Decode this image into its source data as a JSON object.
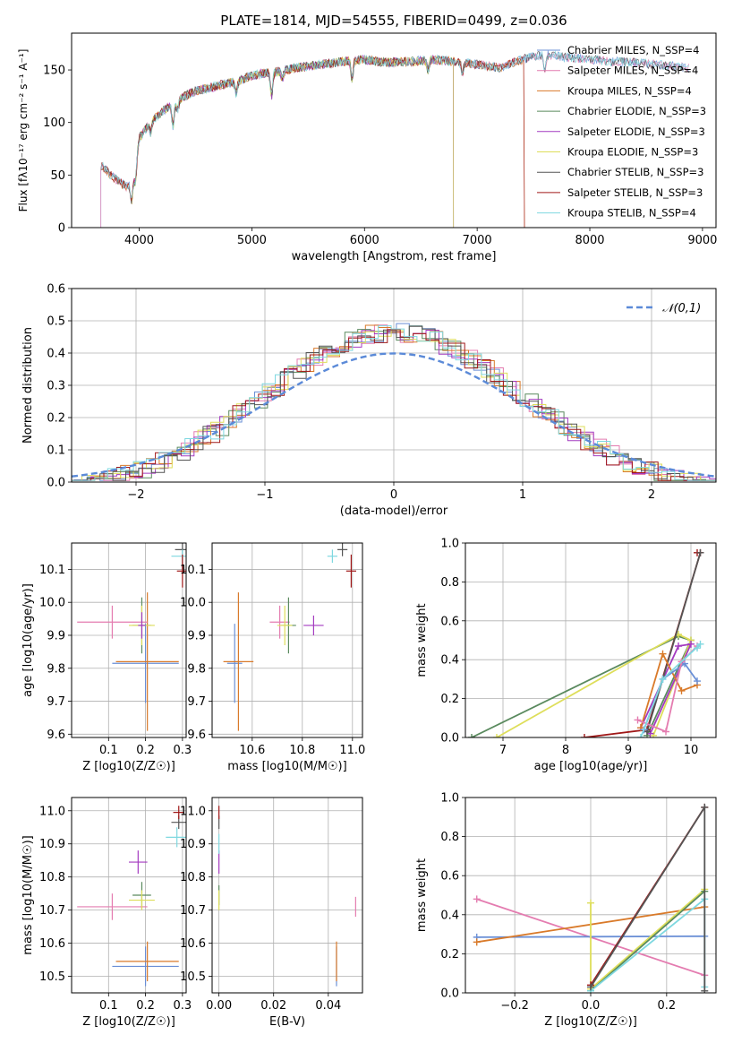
{
  "colors": {
    "chabrier_miles": "#6a8fd6",
    "salpeter_miles": "#e47cb0",
    "kroupa_miles": "#d97a2a",
    "chabrier_elodie": "#5a8a5e",
    "salpeter_elodie": "#a43bc0",
    "kroupa_elodie": "#dede5a",
    "chabrier_stelib": "#555555",
    "salpeter_stelib": "#a01818",
    "kroupa_stelib": "#7fd8e0",
    "normal": "#5b8ad8"
  },
  "chart_data": [
    {
      "id": "spectrum",
      "type": "line",
      "title": "PLATE=1814, MJD=54555, FIBERID=0499, z=0.036",
      "xlabel": "wavelength [Angstrom, rest frame]",
      "ylabel": "Flux [fλ10⁻¹⁷ erg cm⁻² s⁻¹ A⁻¹]",
      "xlim": [
        3400,
        9120
      ],
      "ylim": [
        0,
        185
      ],
      "xticks": [
        "4000",
        "5000",
        "6000",
        "7000",
        "8000",
        "9000"
      ],
      "yticks": [
        "0",
        "50",
        "100",
        "150"
      ],
      "legend_position": "top-right",
      "legend": [
        "Chabrier MILES, N_SSP=4",
        "Salpeter MILES, N_SSP=4",
        "Kroupa MILES, N_SSP=4",
        "Chabrier ELODIE, N_SSP=3",
        "Salpeter ELODIE, N_SSP=3",
        "Kroupa ELODIE, N_SSP=3",
        "Chabrier STELIB, N_SSP=3",
        "Salpeter STELIB, N_SSP=3",
        "Kroupa STELIB, N_SSP=4"
      ],
      "continuum": [
        [
          3660,
          60
        ],
        [
          3700,
          55
        ],
        [
          3800,
          45
        ],
        [
          3900,
          38
        ],
        [
          3950,
          50
        ],
        [
          4000,
          85
        ],
        [
          4100,
          100
        ],
        [
          4200,
          110
        ],
        [
          4300,
          118
        ],
        [
          4400,
          125
        ],
        [
          4500,
          130
        ],
        [
          4700,
          135
        ],
        [
          4900,
          140
        ],
        [
          5000,
          145
        ],
        [
          5200,
          148
        ],
        [
          5400,
          152
        ],
        [
          5600,
          155
        ],
        [
          5800,
          158
        ],
        [
          6000,
          160
        ],
        [
          6200,
          157
        ],
        [
          6400,
          158
        ],
        [
          6600,
          160
        ],
        [
          6800,
          158
        ],
        [
          7000,
          155
        ],
        [
          7200,
          152
        ],
        [
          7400,
          160
        ],
        [
          7600,
          165
        ],
        [
          7800,
          162
        ],
        [
          8000,
          160
        ],
        [
          8200,
          158
        ],
        [
          8400,
          157
        ],
        [
          8600,
          155
        ],
        [
          8800,
          153
        ],
        [
          8880,
          152
        ]
      ],
      "dips": [
        [
          3933,
          20
        ],
        [
          3968,
          18
        ],
        [
          4102,
          10
        ],
        [
          4300,
          22
        ],
        [
          4340,
          10
        ],
        [
          4861,
          12
        ],
        [
          5175,
          22
        ],
        [
          5270,
          8
        ],
        [
          5890,
          18
        ],
        [
          6563,
          10
        ],
        [
          6870,
          10
        ],
        [
          7600,
          15
        ]
      ],
      "grid": false
    },
    {
      "id": "residuals",
      "type": "histogram",
      "xlabel": "(data-model)/error",
      "ylabel": "Normed distribution",
      "xlim": [
        -2.5,
        2.5
      ],
      "ylim": [
        0,
        0.6
      ],
      "xticks": [
        "−2",
        "−1",
        "0",
        "1",
        "2"
      ],
      "yticks": [
        "0.0",
        "0.1",
        "0.2",
        "0.3",
        "0.4",
        "0.5",
        "0.6"
      ],
      "bin_width": 0.1,
      "legend": [
        "𝒩(0,1)"
      ],
      "legend_position": "top-right",
      "grid": true
    },
    {
      "id": "z-age",
      "type": "scatter",
      "xlabel": "Z [log10(Z/Z☉)]",
      "ylabel": "age [log10(age/yr)]",
      "xlim": [
        0.0,
        0.31
      ],
      "ylim": [
        9.59,
        10.18
      ],
      "xticks": [
        "0.1",
        "0.2",
        "0.3"
      ],
      "yticks": [
        "9.6",
        "9.7",
        "9.8",
        "9.9",
        "10.0",
        "10.1"
      ],
      "grid": true,
      "points": [
        {
          "model": "chabrier_miles",
          "x": 0.2,
          "y": 9.815,
          "xerr": 0.09,
          "yerr": 0.12
        },
        {
          "model": "kroupa_miles",
          "x": 0.205,
          "y": 9.82,
          "xerr": 0.085,
          "yerr": 0.21
        },
        {
          "model": "salpeter_miles",
          "x": 0.11,
          "y": 9.94,
          "xerr": 0.095,
          "yerr": 0.05
        },
        {
          "model": "chabrier_elodie",
          "x": 0.19,
          "y": 9.93,
          "xerr": 0.025,
          "yerr": 0.085
        },
        {
          "model": "kroupa_elodie",
          "x": 0.19,
          "y": 9.93,
          "xerr": 0.035,
          "yerr": 0.06
        },
        {
          "model": "salpeter_elodie",
          "x": 0.19,
          "y": 9.93,
          "xerr": 0.01,
          "yerr": 0.04
        },
        {
          "model": "chabrier_stelib",
          "x": 0.3,
          "y": 10.16,
          "xerr": 0.02,
          "yerr": 0.06
        },
        {
          "model": "kroupa_stelib",
          "x": 0.3,
          "y": 10.14,
          "xerr": 0.03,
          "yerr": 0.02
        },
        {
          "model": "salpeter_stelib",
          "x": 0.3,
          "y": 10.095,
          "xerr": 0.015,
          "yerr": 0.05
        }
      ]
    },
    {
      "id": "mass-age",
      "type": "scatter",
      "xlabel": "mass [log10(M/M☉)]",
      "ylabel": "",
      "xlim": [
        10.44,
        11.04
      ],
      "ylim": [
        9.59,
        10.18
      ],
      "xticks": [
        "10.6",
        "10.8",
        "11.0"
      ],
      "yticks": [
        "9.6",
        "9.7",
        "9.8",
        "9.9",
        "10.0",
        "10.1"
      ],
      "grid": true,
      "points": [
        {
          "model": "chabrier_miles",
          "x": 10.53,
          "y": 9.815,
          "xerr": 0.03,
          "yerr": 0.12
        },
        {
          "model": "kroupa_miles",
          "x": 10.545,
          "y": 9.82,
          "xerr": 0.06,
          "yerr": 0.21
        },
        {
          "model": "salpeter_miles",
          "x": 10.71,
          "y": 9.94,
          "xerr": 0.04,
          "yerr": 0.05
        },
        {
          "model": "chabrier_elodie",
          "x": 10.745,
          "y": 9.93,
          "xerr": 0.03,
          "yerr": 0.085
        },
        {
          "model": "kroupa_elodie",
          "x": 10.73,
          "y": 9.93,
          "xerr": 0.03,
          "yerr": 0.06
        },
        {
          "model": "salpeter_elodie",
          "x": 10.845,
          "y": 9.93,
          "xerr": 0.04,
          "yerr": 0.03
        },
        {
          "model": "chabrier_stelib",
          "x": 10.96,
          "y": 10.16,
          "xerr": 0.02,
          "yerr": 0.02
        },
        {
          "model": "kroupa_stelib",
          "x": 10.92,
          "y": 10.14,
          "xerr": 0.02,
          "yerr": 0.02
        },
        {
          "model": "salpeter_stelib",
          "x": 10.995,
          "y": 10.095,
          "xerr": 0.02,
          "yerr": 0.05
        }
      ]
    },
    {
      "id": "age-weight",
      "type": "line",
      "xlabel": "age [log10(age/yr)]",
      "ylabel": "mass weight",
      "xlim": [
        6.4,
        10.4
      ],
      "ylim": [
        0,
        1.0
      ],
      "xticks": [
        "7",
        "8",
        "9",
        "10"
      ],
      "yticks": [
        "0.0",
        "0.2",
        "0.4",
        "0.6",
        "0.8",
        "1.0"
      ],
      "grid": true,
      "series": [
        {
          "model": "chabrier_elodie",
          "points": [
            [
              6.5,
              0.0
            ],
            [
              9.8,
              0.52
            ],
            [
              10.0,
              0.5
            ],
            [
              9.3,
              0.01
            ]
          ]
        },
        {
          "model": "kroupa_elodie",
          "points": [
            [
              6.9,
              0.0
            ],
            [
              9.8,
              0.53
            ],
            [
              10.0,
              0.5
            ],
            [
              9.4,
              0.01
            ]
          ]
        },
        {
          "model": "salpeter_elodie",
          "points": [
            [
              9.2,
              0.05
            ],
            [
              9.8,
              0.47
            ],
            [
              10.0,
              0.48
            ],
            [
              9.35,
              0.02
            ]
          ]
        },
        {
          "model": "salpeter_stelib",
          "points": [
            [
              8.3,
              0.0
            ],
            [
              9.3,
              0.04
            ],
            [
              10.15,
              0.95
            ],
            [
              10.1,
              0.95
            ]
          ]
        },
        {
          "model": "chabrier_stelib",
          "points": [
            [
              9.3,
              0.03
            ],
            [
              10.15,
              0.95
            ]
          ]
        },
        {
          "model": "kroupa_miles",
          "points": [
            [
              9.2,
              0.05
            ],
            [
              9.55,
              0.43
            ],
            [
              9.85,
              0.24
            ],
            [
              10.1,
              0.27
            ]
          ]
        },
        {
          "model": "chabrier_miles",
          "points": [
            [
              9.25,
              0.04
            ],
            [
              9.55,
              0.3
            ],
            [
              9.9,
              0.38
            ],
            [
              10.1,
              0.29
            ]
          ]
        },
        {
          "model": "salpeter_miles",
          "points": [
            [
              9.15,
              0.09
            ],
            [
              9.6,
              0.03
            ],
            [
              9.85,
              0.39
            ],
            [
              10.1,
              0.47
            ]
          ]
        },
        {
          "model": "kroupa_stelib",
          "points": [
            [
              9.2,
              0.0
            ],
            [
              9.55,
              0.3
            ],
            [
              10.15,
              0.48
            ],
            [
              10.1,
              0.46
            ]
          ]
        }
      ]
    },
    {
      "id": "z-mass",
      "type": "scatter",
      "xlabel": "Z [log10(Z/Z☉)]",
      "ylabel": "mass [log10(M/M☉)]",
      "xlim": [
        0.0,
        0.31
      ],
      "ylim": [
        10.45,
        11.04
      ],
      "xticks": [
        "0.1",
        "0.2",
        "0.3"
      ],
      "yticks": [
        "10.5",
        "10.6",
        "10.7",
        "10.8",
        "10.9",
        "11.0"
      ],
      "grid": true,
      "points": [
        {
          "model": "chabrier_miles",
          "x": 0.2,
          "y": 10.53,
          "xerr": 0.09,
          "yerr": 0.06
        },
        {
          "model": "kroupa_miles",
          "x": 0.205,
          "y": 10.545,
          "xerr": 0.085,
          "yerr": 0.06
        },
        {
          "model": "salpeter_miles",
          "x": 0.11,
          "y": 10.71,
          "xerr": 0.095,
          "yerr": 0.04
        },
        {
          "model": "chabrier_elodie",
          "x": 0.19,
          "y": 10.745,
          "xerr": 0.025,
          "yerr": 0.04
        },
        {
          "model": "kroupa_elodie",
          "x": 0.19,
          "y": 10.73,
          "xerr": 0.035,
          "yerr": 0.03
        },
        {
          "model": "salpeter_elodie",
          "x": 0.18,
          "y": 10.845,
          "xerr": 0.025,
          "yerr": 0.035
        },
        {
          "model": "chabrier_stelib",
          "x": 0.29,
          "y": 10.965,
          "xerr": 0.02,
          "yerr": 0.02
        },
        {
          "model": "kroupa_stelib",
          "x": 0.285,
          "y": 10.92,
          "xerr": 0.03,
          "yerr": 0.03
        },
        {
          "model": "salpeter_stelib",
          "x": 0.29,
          "y": 10.995,
          "xerr": 0.015,
          "yerr": 0.02
        }
      ]
    },
    {
      "id": "ebv-mass",
      "type": "scatter",
      "xlabel": "E(B-V)",
      "ylabel": "",
      "xlim": [
        -0.0025,
        0.0525
      ],
      "ylim": [
        10.45,
        11.04
      ],
      "xticks": [
        "0.00",
        "0.02",
        "0.04"
      ],
      "yticks": [
        "10.5",
        "10.6",
        "10.7",
        "10.8",
        "10.9",
        "11.0"
      ],
      "grid": true,
      "points": [
        {
          "model": "chabrier_miles",
          "x": 0.043,
          "y": 10.53,
          "xerr": 0,
          "yerr": 0.06
        },
        {
          "model": "kroupa_miles",
          "x": 0.043,
          "y": 10.545,
          "xerr": 0,
          "yerr": 0.06
        },
        {
          "model": "salpeter_miles",
          "x": 0.05,
          "y": 10.71,
          "xerr": 0,
          "yerr": 0.03
        },
        {
          "model": "chabrier_elodie",
          "x": 0.0,
          "y": 10.745,
          "xerr": 0,
          "yerr": 0.03
        },
        {
          "model": "kroupa_elodie",
          "x": 0.0,
          "y": 10.73,
          "xerr": 0,
          "yerr": 0.03
        },
        {
          "model": "salpeter_elodie",
          "x": 0.0,
          "y": 10.845,
          "xerr": 0,
          "yerr": 0.035
        },
        {
          "model": "chabrier_stelib",
          "x": 0.0,
          "y": 10.965,
          "xerr": 0,
          "yerr": 0.02
        },
        {
          "model": "kroupa_stelib",
          "x": 0.0,
          "y": 10.9,
          "xerr": 0,
          "yerr": 0.03
        },
        {
          "model": "salpeter_stelib",
          "x": 0.0,
          "y": 10.995,
          "xerr": 0,
          "yerr": 0.02
        }
      ]
    },
    {
      "id": "z-weight",
      "type": "line",
      "xlabel": "Z [log10(Z/Z☉)]",
      "ylabel": "mass weight",
      "xlim": [
        -0.33,
        0.33
      ],
      "ylim": [
        0,
        1.0
      ],
      "xticks": [
        "−0.2",
        "0.0",
        "0.2"
      ],
      "yticks": [
        "0.0",
        "0.2",
        "0.4",
        "0.6",
        "0.8",
        "1.0"
      ],
      "grid": true,
      "series": [
        {
          "model": "salpeter_miles",
          "points": [
            [
              -0.3,
              0.48
            ],
            [
              0.3,
              0.09
            ]
          ]
        },
        {
          "model": "chabrier_miles",
          "points": [
            [
              -0.3,
              0.285
            ],
            [
              0.3,
              0.29
            ]
          ]
        },
        {
          "model": "kroupa_miles",
          "points": [
            [
              -0.3,
              0.26
            ],
            [
              0.3,
              0.44
            ]
          ]
        },
        {
          "model": "kroupa_elodie",
          "points": [
            [
              0.0,
              0.46
            ],
            [
              0.0,
              0.02
            ],
            [
              0.3,
              0.53
            ]
          ]
        },
        {
          "model": "chabrier_elodie",
          "points": [
            [
              0.0,
              0.01
            ],
            [
              0.3,
              0.52
            ]
          ]
        },
        {
          "model": "kroupa_stelib",
          "points": [
            [
              0.0,
              0.01
            ],
            [
              0.3,
              0.48
            ],
            [
              0.3,
              0.03
            ]
          ]
        },
        {
          "model": "salpeter_stelib",
          "points": [
            [
              0.0,
              0.04
            ],
            [
              0.3,
              0.95
            ]
          ]
        },
        {
          "model": "chabrier_stelib",
          "points": [
            [
              0.0,
              0.03
            ],
            [
              0.3,
              0.95
            ],
            [
              0.3,
              0.01
            ]
          ]
        }
      ]
    }
  ]
}
